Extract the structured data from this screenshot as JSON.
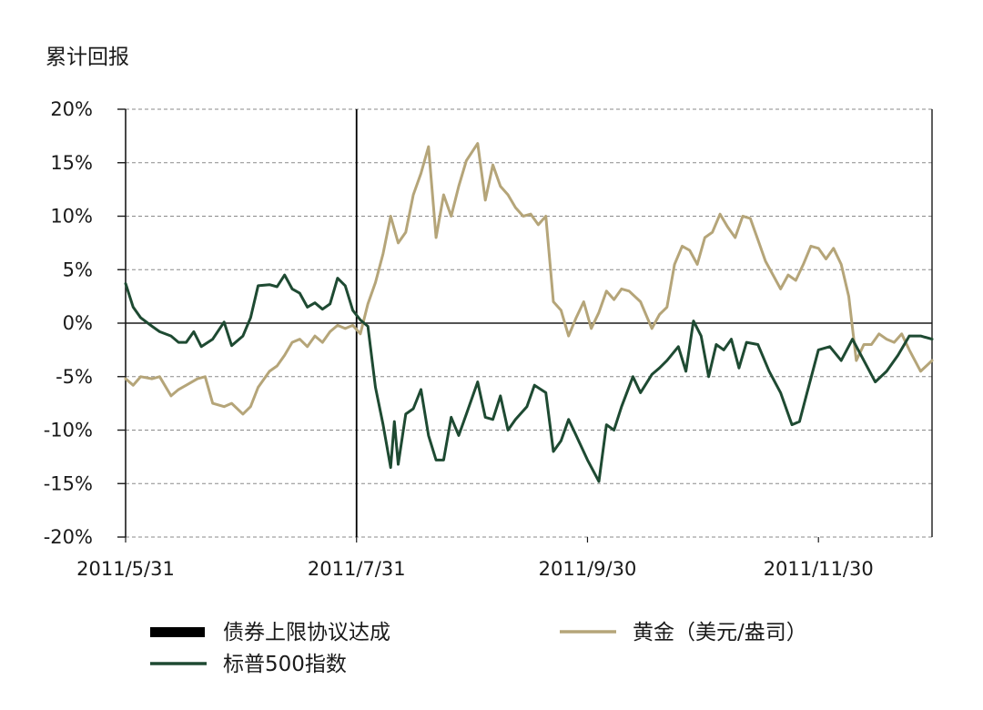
{
  "chart_data": {
    "type": "line",
    "ylabel": "累计回报",
    "ylim": [
      -0.2,
      0.2
    ],
    "y_ticks": [
      {
        "value": 0.2,
        "label": "20%"
      },
      {
        "value": 0.15,
        "label": "15%"
      },
      {
        "value": 0.1,
        "label": "10%"
      },
      {
        "value": 0.05,
        "label": "5%"
      },
      {
        "value": 0.0,
        "label": "0%"
      },
      {
        "value": -0.05,
        "label": "-5%"
      },
      {
        "value": -0.1,
        "label": "-10%"
      },
      {
        "value": -0.15,
        "label": "-15%"
      },
      {
        "value": -0.2,
        "label": "-20%"
      }
    ],
    "xlim": [
      "2011-05-31",
      "2011-12-30"
    ],
    "x_ticks": [
      {
        "date": "2011-05-31",
        "label": "2011/5/31"
      },
      {
        "date": "2011-07-31",
        "label": "2011/7/31"
      },
      {
        "date": "2011-09-30",
        "label": "2011/9/30"
      },
      {
        "date": "2011-11-30",
        "label": "2011/11/30"
      }
    ],
    "grid": true,
    "event_line": {
      "date": "2011-07-31",
      "name": "债券上限协议达成",
      "color": "#000000"
    },
    "series": [
      {
        "name": "标普500指数",
        "color": "#1e4a32",
        "points": [
          [
            "2011-05-31",
            0.037
          ],
          [
            "2011-06-02",
            0.015
          ],
          [
            "2011-06-04",
            0.005
          ],
          [
            "2011-06-07",
            -0.003
          ],
          [
            "2011-06-09",
            -0.008
          ],
          [
            "2011-06-12",
            -0.012
          ],
          [
            "2011-06-14",
            -0.018
          ],
          [
            "2011-06-16",
            -0.018
          ],
          [
            "2011-06-18",
            -0.008
          ],
          [
            "2011-06-20",
            -0.022
          ],
          [
            "2011-06-23",
            -0.015
          ],
          [
            "2011-06-26",
            0.001
          ],
          [
            "2011-06-28",
            -0.021
          ],
          [
            "2011-07-01",
            -0.012
          ],
          [
            "2011-07-03",
            0.005
          ],
          [
            "2011-07-05",
            0.035
          ],
          [
            "2011-07-08",
            0.036
          ],
          [
            "2011-07-10",
            0.034
          ],
          [
            "2011-07-12",
            0.045
          ],
          [
            "2011-07-14",
            0.032
          ],
          [
            "2011-07-16",
            0.028
          ],
          [
            "2011-07-18",
            0.015
          ],
          [
            "2011-07-20",
            0.019
          ],
          [
            "2011-07-22",
            0.013
          ],
          [
            "2011-07-24",
            0.018
          ],
          [
            "2011-07-26",
            0.042
          ],
          [
            "2011-07-28",
            0.035
          ],
          [
            "2011-07-30",
            0.012
          ],
          [
            "2011-08-01",
            0.003
          ],
          [
            "2011-08-03",
            -0.003
          ],
          [
            "2011-08-05",
            -0.06
          ],
          [
            "2011-08-07",
            -0.095
          ],
          [
            "2011-08-09",
            -0.135
          ],
          [
            "2011-08-10",
            -0.092
          ],
          [
            "2011-08-11",
            -0.132
          ],
          [
            "2011-08-13",
            -0.085
          ],
          [
            "2011-08-15",
            -0.08
          ],
          [
            "2011-08-17",
            -0.062
          ],
          [
            "2011-08-19",
            -0.105
          ],
          [
            "2011-08-21",
            -0.128
          ],
          [
            "2011-08-23",
            -0.128
          ],
          [
            "2011-08-25",
            -0.088
          ],
          [
            "2011-08-27",
            -0.105
          ],
          [
            "2011-08-29",
            -0.085
          ],
          [
            "2011-09-01",
            -0.055
          ],
          [
            "2011-09-03",
            -0.088
          ],
          [
            "2011-09-05",
            -0.09
          ],
          [
            "2011-09-07",
            -0.068
          ],
          [
            "2011-09-09",
            -0.1
          ],
          [
            "2011-09-11",
            -0.09
          ],
          [
            "2011-09-14",
            -0.078
          ],
          [
            "2011-09-16",
            -0.058
          ],
          [
            "2011-09-19",
            -0.065
          ],
          [
            "2011-09-21",
            -0.12
          ],
          [
            "2011-09-23",
            -0.11
          ],
          [
            "2011-09-25",
            -0.09
          ],
          [
            "2011-09-27",
            -0.105
          ],
          [
            "2011-09-30",
            -0.128
          ],
          [
            "2011-10-03",
            -0.148
          ],
          [
            "2011-10-05",
            -0.095
          ],
          [
            "2011-10-07",
            -0.1
          ],
          [
            "2011-10-09",
            -0.078
          ],
          [
            "2011-10-12",
            -0.05
          ],
          [
            "2011-10-14",
            -0.065
          ],
          [
            "2011-10-17",
            -0.048
          ],
          [
            "2011-10-19",
            -0.042
          ],
          [
            "2011-10-21",
            -0.035
          ],
          [
            "2011-10-24",
            -0.022
          ],
          [
            "2011-10-26",
            -0.045
          ],
          [
            "2011-10-28",
            0.002
          ],
          [
            "2011-10-30",
            -0.012
          ],
          [
            "2011-11-01",
            -0.05
          ],
          [
            "2011-11-03",
            -0.02
          ],
          [
            "2011-11-05",
            -0.025
          ],
          [
            "2011-11-07",
            -0.015
          ],
          [
            "2011-11-09",
            -0.042
          ],
          [
            "2011-11-11",
            -0.018
          ],
          [
            "2011-11-14",
            -0.02
          ],
          [
            "2011-11-17",
            -0.045
          ],
          [
            "2011-11-20",
            -0.065
          ],
          [
            "2011-11-23",
            -0.095
          ],
          [
            "2011-11-25",
            -0.092
          ],
          [
            "2011-11-27",
            -0.065
          ],
          [
            "2011-11-30",
            -0.025
          ],
          [
            "2011-12-03",
            -0.022
          ],
          [
            "2011-12-06",
            -0.035
          ],
          [
            "2011-12-09",
            -0.015
          ],
          [
            "2011-12-12",
            -0.035
          ],
          [
            "2011-12-15",
            -0.055
          ],
          [
            "2011-12-18",
            -0.045
          ],
          [
            "2011-12-21",
            -0.03
          ],
          [
            "2011-12-24",
            -0.012
          ],
          [
            "2011-12-27",
            -0.012
          ],
          [
            "2011-12-30",
            -0.015
          ]
        ]
      },
      {
        "name": "黄金（美元/盎司）",
        "color": "#b5a579",
        "points": [
          [
            "2011-05-31",
            -0.052
          ],
          [
            "2011-06-02",
            -0.058
          ],
          [
            "2011-06-04",
            -0.05
          ],
          [
            "2011-06-07",
            -0.052
          ],
          [
            "2011-06-09",
            -0.05
          ],
          [
            "2011-06-12",
            -0.068
          ],
          [
            "2011-06-14",
            -0.062
          ],
          [
            "2011-06-16",
            -0.058
          ],
          [
            "2011-06-19",
            -0.052
          ],
          [
            "2011-06-21",
            -0.05
          ],
          [
            "2011-06-23",
            -0.075
          ],
          [
            "2011-06-26",
            -0.078
          ],
          [
            "2011-06-28",
            -0.075
          ],
          [
            "2011-07-01",
            -0.085
          ],
          [
            "2011-07-03",
            -0.078
          ],
          [
            "2011-07-05",
            -0.06
          ],
          [
            "2011-07-08",
            -0.045
          ],
          [
            "2011-07-10",
            -0.04
          ],
          [
            "2011-07-12",
            -0.03
          ],
          [
            "2011-07-14",
            -0.018
          ],
          [
            "2011-07-16",
            -0.015
          ],
          [
            "2011-07-18",
            -0.022
          ],
          [
            "2011-07-20",
            -0.012
          ],
          [
            "2011-07-22",
            -0.018
          ],
          [
            "2011-07-24",
            -0.008
          ],
          [
            "2011-07-26",
            -0.002
          ],
          [
            "2011-07-28",
            -0.005
          ],
          [
            "2011-07-30",
            -0.002
          ],
          [
            "2011-08-01",
            -0.01
          ],
          [
            "2011-08-03",
            0.018
          ],
          [
            "2011-08-05",
            0.038
          ],
          [
            "2011-08-07",
            0.065
          ],
          [
            "2011-08-09",
            0.1
          ],
          [
            "2011-08-11",
            0.075
          ],
          [
            "2011-08-13",
            0.085
          ],
          [
            "2011-08-15",
            0.12
          ],
          [
            "2011-08-17",
            0.14
          ],
          [
            "2011-08-19",
            0.165
          ],
          [
            "2011-08-21",
            0.08
          ],
          [
            "2011-08-23",
            0.12
          ],
          [
            "2011-08-25",
            0.1
          ],
          [
            "2011-08-27",
            0.128
          ],
          [
            "2011-08-29",
            0.152
          ],
          [
            "2011-09-01",
            0.168
          ],
          [
            "2011-09-03",
            0.115
          ],
          [
            "2011-09-05",
            0.148
          ],
          [
            "2011-09-07",
            0.128
          ],
          [
            "2011-09-09",
            0.12
          ],
          [
            "2011-09-11",
            0.108
          ],
          [
            "2011-09-13",
            0.1
          ],
          [
            "2011-09-15",
            0.102
          ],
          [
            "2011-09-17",
            0.092
          ],
          [
            "2011-09-19",
            0.1
          ],
          [
            "2011-09-21",
            0.02
          ],
          [
            "2011-09-23",
            0.012
          ],
          [
            "2011-09-25",
            -0.012
          ],
          [
            "2011-09-27",
            0.005
          ],
          [
            "2011-09-29",
            0.02
          ],
          [
            "2011-10-01",
            -0.005
          ],
          [
            "2011-10-03",
            0.01
          ],
          [
            "2011-10-05",
            0.03
          ],
          [
            "2011-10-07",
            0.022
          ],
          [
            "2011-10-09",
            0.032
          ],
          [
            "2011-10-11",
            0.03
          ],
          [
            "2011-10-14",
            0.02
          ],
          [
            "2011-10-17",
            -0.005
          ],
          [
            "2011-10-19",
            0.008
          ],
          [
            "2011-10-21",
            0.015
          ],
          [
            "2011-10-23",
            0.055
          ],
          [
            "2011-10-25",
            0.072
          ],
          [
            "2011-10-27",
            0.068
          ],
          [
            "2011-10-29",
            0.055
          ],
          [
            "2011-10-31",
            0.08
          ],
          [
            "2011-11-02",
            0.085
          ],
          [
            "2011-11-04",
            0.102
          ],
          [
            "2011-11-06",
            0.09
          ],
          [
            "2011-11-08",
            0.08
          ],
          [
            "2011-11-10",
            0.1
          ],
          [
            "2011-11-12",
            0.098
          ],
          [
            "2011-11-14",
            0.078
          ],
          [
            "2011-11-16",
            0.058
          ],
          [
            "2011-11-18",
            0.045
          ],
          [
            "2011-11-20",
            0.032
          ],
          [
            "2011-11-22",
            0.045
          ],
          [
            "2011-11-24",
            0.04
          ],
          [
            "2011-11-26",
            0.055
          ],
          [
            "2011-11-28",
            0.072
          ],
          [
            "2011-11-30",
            0.07
          ],
          [
            "2011-12-02",
            0.06
          ],
          [
            "2011-12-04",
            0.07
          ],
          [
            "2011-12-06",
            0.055
          ],
          [
            "2011-12-08",
            0.025
          ],
          [
            "2011-12-10",
            -0.035
          ],
          [
            "2011-12-12",
            -0.02
          ],
          [
            "2011-12-14",
            -0.02
          ],
          [
            "2011-12-16",
            -0.01
          ],
          [
            "2011-12-18",
            -0.015
          ],
          [
            "2011-12-20",
            -0.018
          ],
          [
            "2011-12-22",
            -0.01
          ],
          [
            "2011-12-24",
            -0.025
          ],
          [
            "2011-12-27",
            -0.045
          ],
          [
            "2011-12-30",
            -0.035
          ]
        ]
      }
    ],
    "legend": [
      {
        "label": "债券上限协议达成",
        "color": "#000000",
        "style": "thick-bar"
      },
      {
        "label": "标普500指数",
        "color": "#1e4a32",
        "style": "line"
      },
      {
        "label": "黄金（美元/盎司）",
        "color": "#b5a579",
        "style": "line"
      }
    ]
  }
}
